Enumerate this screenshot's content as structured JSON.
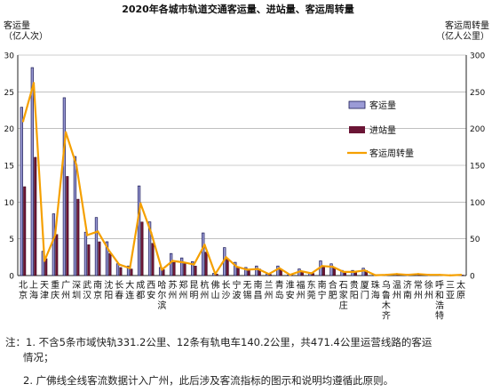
{
  "chart_data": {
    "type": "bar",
    "title": "2020年各城市轨道交通客运量、进站量、客运周转量",
    "ylabel_left": "客运量\n（亿人次）",
    "ylabel_right": "客运周转量\n（亿人公里）",
    "ylim_left": [
      0,
      30
    ],
    "ylim_right": [
      0,
      300
    ],
    "yticks_left": [
      "0",
      "5",
      "10",
      "15",
      "20",
      "25",
      "30"
    ],
    "yticks_right": [
      "0",
      "50",
      "100",
      "150",
      "200",
      "250",
      "300"
    ],
    "grid": true,
    "legend_position": "right-middle",
    "categories": [
      "北京",
      "上海",
      "天津",
      "重庆",
      "广州",
      "深圳",
      "武汉",
      "南京",
      "沈阳",
      "长春",
      "大连",
      "成都",
      "西安",
      "哈尔滨",
      "苏州",
      "郑州",
      "昆明",
      "杭州",
      "佛山",
      "长沙",
      "宁波",
      "无锡",
      "南昌",
      "兰州",
      "青岛",
      "淮安",
      "福州",
      "东莞",
      "南宁",
      "合肥",
      "石家庄",
      "贵阳",
      "厦门",
      "珠海",
      "乌鲁木齐",
      "温州",
      "济南",
      "常州",
      "徐州",
      "呼和浩特",
      "三亚",
      "太原"
    ],
    "series": [
      {
        "name": "客运量",
        "color": "#9b9bd6",
        "axis": "left",
        "values": [
          22.9,
          28.3,
          3.3,
          8.4,
          24.2,
          16.2,
          5.9,
          7.9,
          4.6,
          1.6,
          1.3,
          12.2,
          7.3,
          1.1,
          3.0,
          2.4,
          1.9,
          5.8,
          0.3,
          3.8,
          1.8,
          1.1,
          1.3,
          0.2,
          1.3,
          0.1,
          0.9,
          0.4,
          2.0,
          1.6,
          0.7,
          0.7,
          1.0,
          0.05,
          0.1,
          0.2,
          0.1,
          0.2,
          0.1,
          0.1,
          0.02,
          0.1
        ]
      },
      {
        "name": "进站量",
        "color": "#6b1535",
        "axis": "left",
        "values": [
          12.1,
          16.1,
          2.3,
          5.6,
          13.5,
          10.4,
          4.2,
          4.6,
          3.0,
          1.1,
          0.9,
          7.3,
          4.4,
          0.8,
          1.8,
          1.6,
          1.3,
          3.2,
          0.2,
          2.3,
          1.2,
          0.8,
          0.9,
          0.15,
          0.9,
          0.07,
          0.6,
          0.3,
          1.3,
          1.0,
          0.5,
          0.5,
          0.7,
          0.03,
          0.07,
          0.15,
          0.08,
          0.15,
          0.07,
          0.07,
          0.01,
          0.07
        ]
      },
      {
        "name": "客运周转量",
        "color": "#f5a000",
        "axis": "right",
        "values": [
          210,
          262,
          20,
          55,
          195,
          150,
          55,
          60,
          35,
          15,
          10,
          98,
          58,
          8,
          20,
          18,
          15,
          42,
          2,
          25,
          12,
          8,
          9,
          2,
          10,
          1,
          6,
          3,
          13,
          12,
          5,
          5,
          7,
          0.5,
          1,
          2,
          1,
          2,
          1,
          1,
          0.3,
          1
        ]
      }
    ]
  },
  "footnotes": [
    "注：1. 不含5条市域快轨331.2公里、12条有轨电车140.2公里，共471.4公里运营线路的客运",
    "情况；",
    "2. 广佛线全线客流数据计入广州，此后涉及客流指标的图示和说明均遵循此原则。"
  ]
}
